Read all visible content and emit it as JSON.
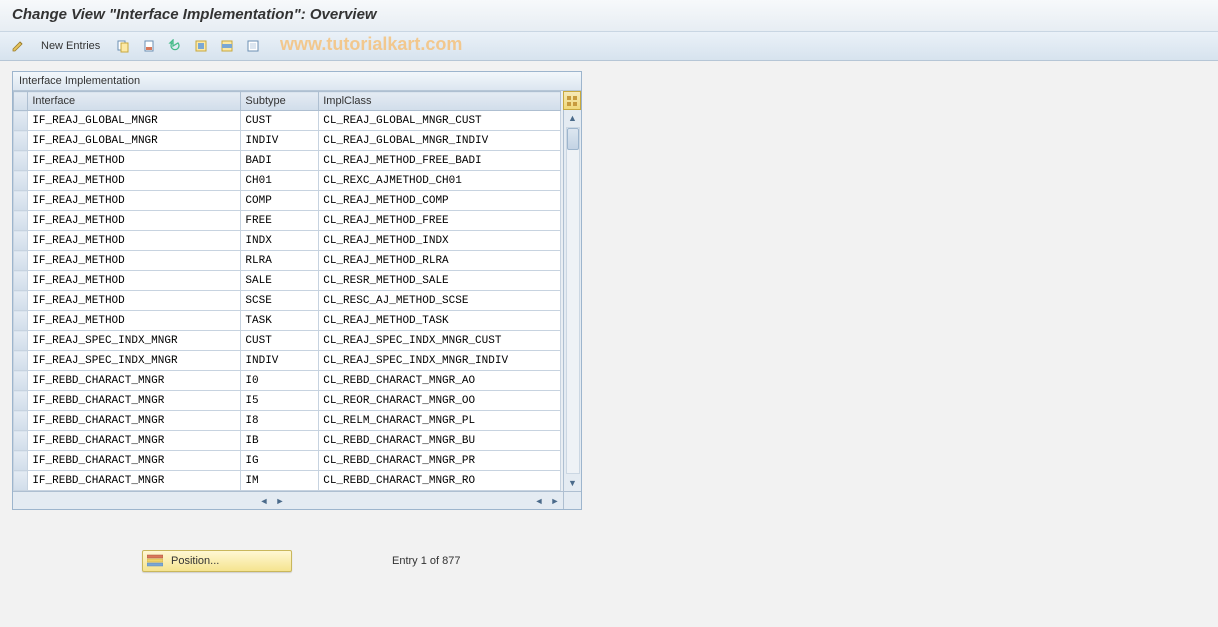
{
  "title": "Change View \"Interface Implementation\": Overview",
  "toolbar": {
    "new_entries_label": "New Entries"
  },
  "watermark": "www.tutorialkart.com",
  "panel": {
    "title": "Interface Implementation",
    "columns": {
      "iface": "Interface",
      "subtype": "Subtype",
      "implclass": "ImplClass"
    },
    "column_widths": {
      "rowhead": 14,
      "iface": 208,
      "subtype": 76,
      "implclass": 236
    },
    "rows": [
      {
        "iface": "IF_REAJ_GLOBAL_MNGR",
        "subtype": "CUST",
        "implclass": "CL_REAJ_GLOBAL_MNGR_CUST"
      },
      {
        "iface": "IF_REAJ_GLOBAL_MNGR",
        "subtype": "INDIV",
        "implclass": "CL_REAJ_GLOBAL_MNGR_INDIV"
      },
      {
        "iface": "IF_REAJ_METHOD",
        "subtype": "BADI",
        "implclass": "CL_REAJ_METHOD_FREE_BADI"
      },
      {
        "iface": "IF_REAJ_METHOD",
        "subtype": "CH01",
        "implclass": "CL_REXC_AJMETHOD_CH01"
      },
      {
        "iface": "IF_REAJ_METHOD",
        "subtype": "COMP",
        "implclass": "CL_REAJ_METHOD_COMP"
      },
      {
        "iface": "IF_REAJ_METHOD",
        "subtype": "FREE",
        "implclass": "CL_REAJ_METHOD_FREE"
      },
      {
        "iface": "IF_REAJ_METHOD",
        "subtype": "INDX",
        "implclass": "CL_REAJ_METHOD_INDX"
      },
      {
        "iface": "IF_REAJ_METHOD",
        "subtype": "RLRA",
        "implclass": "CL_REAJ_METHOD_RLRA"
      },
      {
        "iface": "IF_REAJ_METHOD",
        "subtype": "SALE",
        "implclass": "CL_RESR_METHOD_SALE"
      },
      {
        "iface": "IF_REAJ_METHOD",
        "subtype": "SCSE",
        "implclass": "CL_RESC_AJ_METHOD_SCSE"
      },
      {
        "iface": "IF_REAJ_METHOD",
        "subtype": "TASK",
        "implclass": "CL_REAJ_METHOD_TASK"
      },
      {
        "iface": "IF_REAJ_SPEC_INDX_MNGR",
        "subtype": "CUST",
        "implclass": "CL_REAJ_SPEC_INDX_MNGR_CUST"
      },
      {
        "iface": "IF_REAJ_SPEC_INDX_MNGR",
        "subtype": "INDIV",
        "implclass": "CL_REAJ_SPEC_INDX_MNGR_INDIV"
      },
      {
        "iface": "IF_REBD_CHARACT_MNGR",
        "subtype": "I0",
        "implclass": "CL_REBD_CHARACT_MNGR_AO"
      },
      {
        "iface": "IF_REBD_CHARACT_MNGR",
        "subtype": "I5",
        "implclass": "CL_REOR_CHARACT_MNGR_OO"
      },
      {
        "iface": "IF_REBD_CHARACT_MNGR",
        "subtype": "I8",
        "implclass": "CL_RELM_CHARACT_MNGR_PL"
      },
      {
        "iface": "IF_REBD_CHARACT_MNGR",
        "subtype": "IB",
        "implclass": "CL_REBD_CHARACT_MNGR_BU"
      },
      {
        "iface": "IF_REBD_CHARACT_MNGR",
        "subtype": "IG",
        "implclass": "CL_REBD_CHARACT_MNGR_PR"
      },
      {
        "iface": "IF_REBD_CHARACT_MNGR",
        "subtype": "IM",
        "implclass": "CL_REBD_CHARACT_MNGR_RO"
      }
    ]
  },
  "footer": {
    "position_label": "Position...",
    "entry_label": "Entry 1 of 877"
  },
  "colors": {
    "header_grad_top": "#e4ebf3",
    "header_grad_bot": "#d1ddea",
    "border": "#aebfd1",
    "cell_bg": "#ffffff",
    "panel_bg": "#e9eef3"
  }
}
